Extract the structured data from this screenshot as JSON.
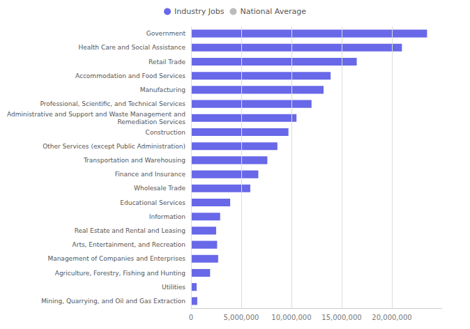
{
  "chart_data": {
    "type": "bar",
    "orientation": "horizontal",
    "categories": [
      "Mining, Quarrying, and Oil and Gas Extraction",
      "Utilities",
      "Agriculture, Forestry, Fishing and Hunting",
      "Management of Companies and Enterprises",
      "Arts, Entertainment, and Recreation",
      "Real Estate and Rental and Leasing",
      "Information",
      "Educational Services",
      "Wholesale Trade",
      "Finance and Insurance",
      "Transportation and Warehousing",
      "Other Services (except Public Administration)",
      "Construction",
      "Administrative and Support and Waste Management and\nRemediation Services",
      "Professional, Scientific, and Technical Services",
      "Manufacturing",
      "Accommodation and Food Services",
      "Retail Trade",
      "Health Care and Social Assistance",
      "Government"
    ],
    "series": [
      {
        "name": "Industry Jobs",
        "color": "#6868e8",
        "values": [
          620000,
          560000,
          1900000,
          2700000,
          2600000,
          2500000,
          2900000,
          3900000,
          5900000,
          6700000,
          7600000,
          8600000,
          9700000,
          10500000,
          12000000,
          13200000,
          13900000,
          16500000,
          21000000,
          23500000
        ]
      },
      {
        "name": "National Average",
        "color": "#aaaaaa",
        "values": [
          null,
          null,
          null,
          null,
          null,
          null,
          null,
          null,
          null,
          null,
          null,
          null,
          null,
          null,
          null,
          null,
          null,
          null,
          null,
          null
        ]
      }
    ],
    "xlim": [
      0,
      25000000
    ],
    "xticks": [
      0,
      {
        "value": 5000000,
        "label": "5,000,000"
      },
      {
        "value": 10000000,
        "label": "10,000,000"
      },
      {
        "value": 15000000,
        "label": "15,000,000"
      },
      {
        "value": 20000000,
        "label": "20,000,000"
      }
    ],
    "grid": true,
    "legend": "top"
  }
}
